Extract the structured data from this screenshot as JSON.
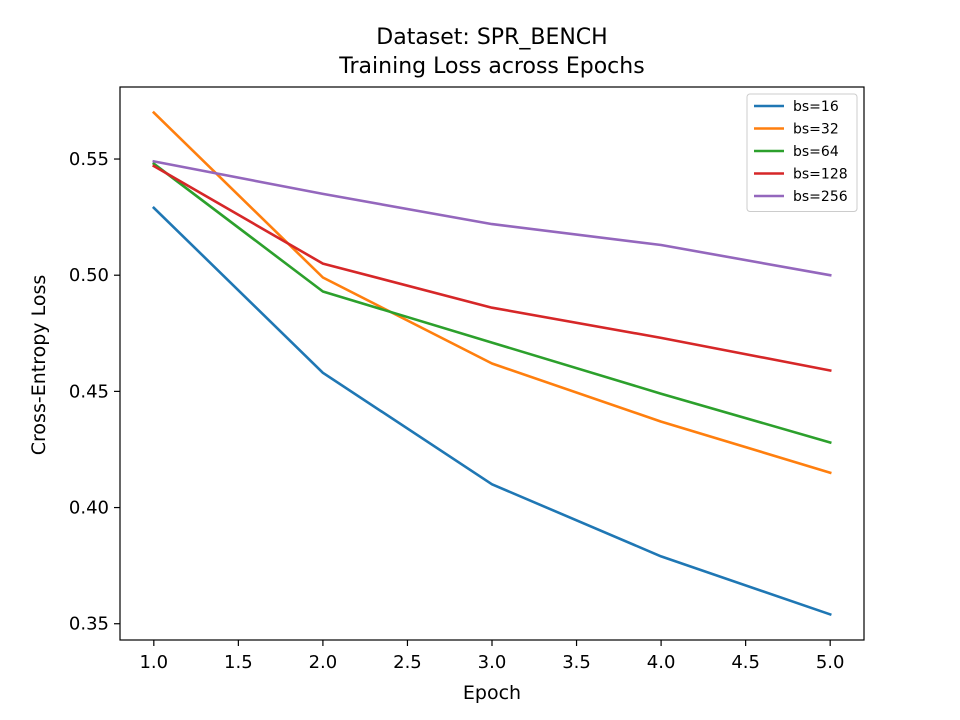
{
  "chart_data": {
    "type": "line",
    "title_lines": [
      "Dataset: SPR_BENCH",
      "Training Loss across Epochs"
    ],
    "xlabel": "Epoch",
    "ylabel": "Cross-Entropy Loss",
    "x": [
      1,
      2,
      3,
      4,
      5
    ],
    "xlim": [
      0.8,
      5.2
    ],
    "ylim": [
      0.343,
      0.581
    ],
    "xticks": [
      1.0,
      1.5,
      2.0,
      2.5,
      3.0,
      3.5,
      4.0,
      4.5,
      5.0
    ],
    "xtick_labels": [
      "1.0",
      "1.5",
      "2.0",
      "2.5",
      "3.0",
      "3.5",
      "4.0",
      "4.5",
      "5.0"
    ],
    "yticks": [
      0.35,
      0.4,
      0.45,
      0.5,
      0.55
    ],
    "ytick_labels": [
      "0.35",
      "0.40",
      "0.45",
      "0.50",
      "0.55"
    ],
    "grid": false,
    "legend_position": "top-right",
    "series": [
      {
        "name": "bs=16",
        "color": "#1f77b4",
        "values": [
          0.529,
          0.458,
          0.41,
          0.379,
          0.354
        ]
      },
      {
        "name": "bs=32",
        "color": "#ff7f0e",
        "values": [
          0.57,
          0.499,
          0.462,
          0.437,
          0.415
        ]
      },
      {
        "name": "bs=64",
        "color": "#2ca02c",
        "values": [
          0.548,
          0.493,
          0.471,
          0.449,
          0.428
        ]
      },
      {
        "name": "bs=128",
        "color": "#d62728",
        "values": [
          0.547,
          0.505,
          0.486,
          0.473,
          0.459
        ]
      },
      {
        "name": "bs=256",
        "color": "#9467bd",
        "values": [
          0.549,
          0.535,
          0.522,
          0.513,
          0.5
        ]
      }
    ]
  }
}
